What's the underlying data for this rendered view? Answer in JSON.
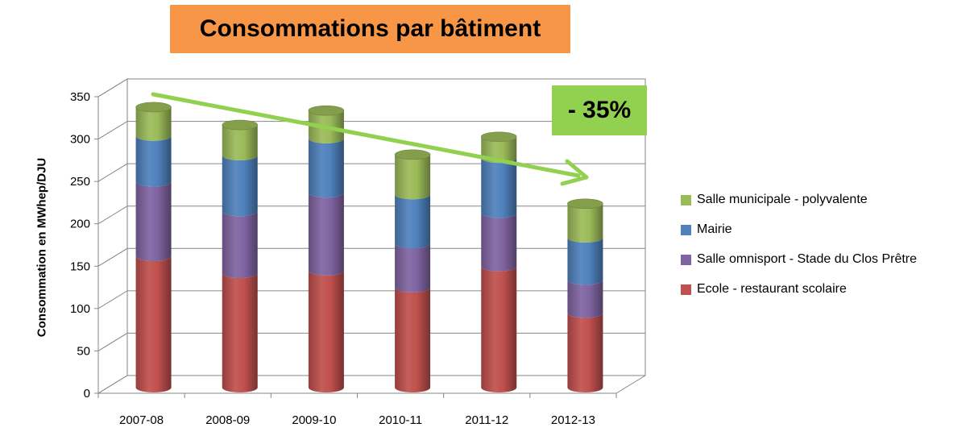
{
  "chart_data": {
    "type": "bar",
    "stacked": true,
    "style": "3d-cylinder",
    "title": "Consommations par bâtiment",
    "ylabel": "Consommation en MWhep/DJU",
    "xlabel": "",
    "categories": [
      "2007-08",
      "2008-09",
      "2009-10",
      "2010-11",
      "2011-12",
      "2012-13"
    ],
    "y_ticks": [
      "0",
      "50",
      "100",
      "150",
      "200",
      "250",
      "300",
      "350"
    ],
    "ylim": [
      0,
      350
    ],
    "grid": true,
    "legend_position": "right",
    "series": [
      {
        "name": "Ecole - restaurant scolaire",
        "color": "#c0504d",
        "values": [
          155,
          135,
          138,
          118,
          143,
          88
        ]
      },
      {
        "name": "Salle omnisport - Stade du Clos Prêtre",
        "color": "#8064a2",
        "values": [
          88,
          73,
          92,
          52,
          63,
          39
        ]
      },
      {
        "name": "Mairie",
        "color": "#4f81bd",
        "values": [
          54,
          66,
          64,
          58,
          65,
          50
        ]
      },
      {
        "name": "Salle municipale - polyvalente",
        "color": "#9bbb59",
        "values": [
          34,
          36,
          33,
          47,
          25,
          40
        ]
      }
    ],
    "annotations": [
      {
        "type": "trend-arrow",
        "color": "#92d050",
        "from_category": "2007-08",
        "to_category": "2012-13"
      },
      {
        "type": "badge",
        "text": "- 35%",
        "color": "#92d050"
      }
    ]
  },
  "colors": {
    "title_background": "#f79646",
    "badge_background": "#92d050",
    "arrow": "#92d050",
    "gridline": "#868686",
    "wall": "#ffffff"
  }
}
